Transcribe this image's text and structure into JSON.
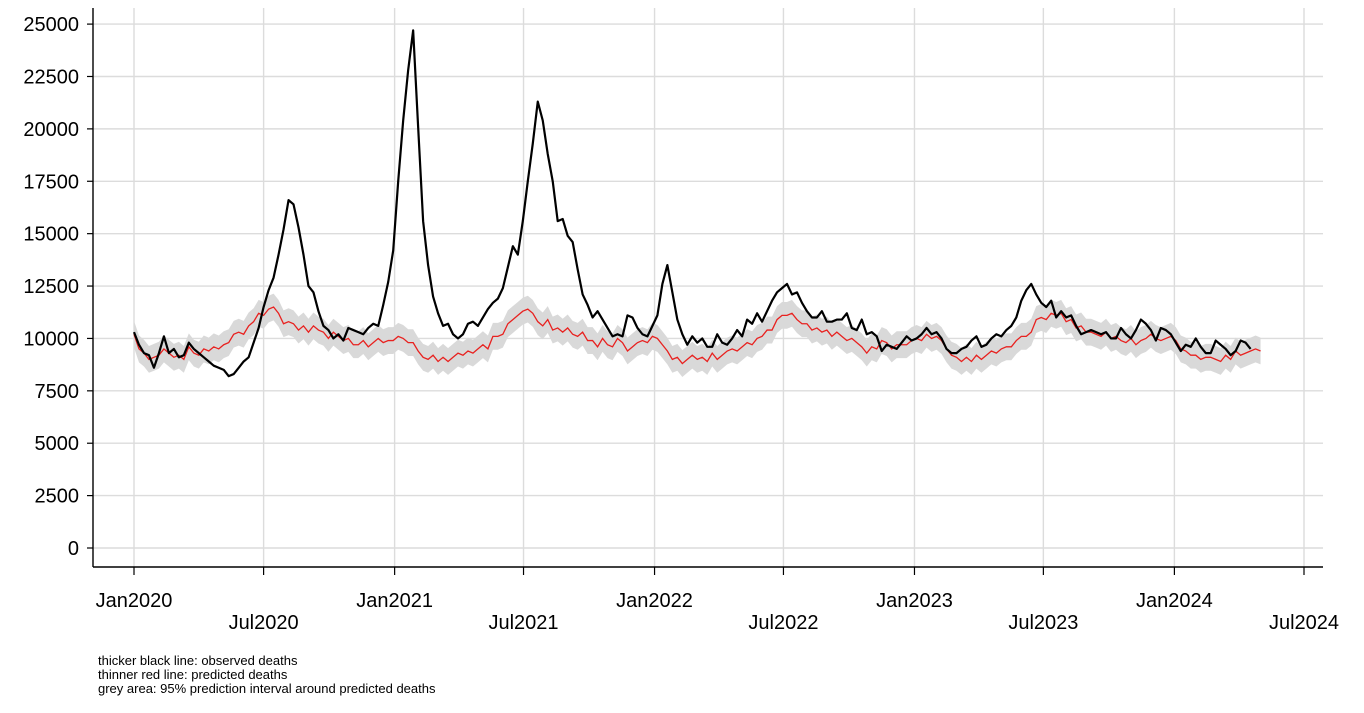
{
  "chart_data": {
    "type": "line",
    "xlabel": "",
    "ylabel": "",
    "x_start": "2020-01-01",
    "x_step_days": 7,
    "ylim": [
      0,
      25000
    ],
    "yticks": [
      0,
      2500,
      5000,
      7500,
      10000,
      12500,
      15000,
      17500,
      20000,
      22500,
      25000
    ],
    "xticks": [
      {
        "label": "Jan2020",
        "date": "2020-01-01",
        "row": "upper"
      },
      {
        "label": "Jul2020",
        "date": "2020-07-01",
        "row": "lower"
      },
      {
        "label": "Jan2021",
        "date": "2021-01-01",
        "row": "upper"
      },
      {
        "label": "Jul2021",
        "date": "2021-07-01",
        "row": "lower"
      },
      {
        "label": "Jan2022",
        "date": "2022-01-01",
        "row": "upper"
      },
      {
        "label": "Jul2022",
        "date": "2022-07-01",
        "row": "lower"
      },
      {
        "label": "Jan2023",
        "date": "2023-01-01",
        "row": "upper"
      },
      {
        "label": "Jul2023",
        "date": "2023-07-01",
        "row": "lower"
      },
      {
        "label": "Jan2024",
        "date": "2024-01-01",
        "row": "upper"
      },
      {
        "label": "Jul2024",
        "date": "2024-07-01",
        "row": "lower"
      }
    ],
    "grid": true,
    "series": [
      {
        "name": "observed deaths",
        "color": "#000000",
        "values": [
          10300,
          9700,
          9300,
          9200,
          8600,
          9300,
          10100,
          9300,
          9500,
          9100,
          9200,
          9800,
          9500,
          9300,
          9100,
          8900,
          8700,
          8600,
          8500,
          8200,
          8300,
          8600,
          8900,
          9100,
          9800,
          10500,
          11500,
          12300,
          12900,
          14000,
          15200,
          16600,
          16400,
          15300,
          14000,
          12500,
          12200,
          11300,
          10600,
          10400,
          10000,
          10200,
          9900,
          10500,
          10400,
          10300,
          10200,
          10500,
          10700,
          10600,
          11600,
          12700,
          14200,
          17500,
          20400,
          22800,
          24700,
          20100,
          15600,
          13500,
          12000,
          11200,
          10600,
          10700,
          10200,
          10000,
          10200,
          10700,
          10800,
          10600,
          11000,
          11400,
          11700,
          11900,
          12400,
          13400,
          14400,
          14000,
          15600,
          17500,
          19300,
          21300,
          20400,
          18800,
          17500,
          15600,
          15700,
          14900,
          14600,
          13300,
          12100,
          11600,
          11000,
          11300,
          10900,
          10500,
          10100,
          10200,
          10100,
          11100,
          11000,
          10500,
          10200,
          10100,
          10600,
          11100,
          12600,
          13500,
          12200,
          10900,
          10200,
          9700,
          10100,
          9800,
          10000,
          9600,
          9600,
          10200,
          9800,
          9700,
          10000,
          10400,
          10100,
          10900,
          10700,
          11200,
          10800,
          11300,
          11800,
          12200,
          12400,
          12600,
          12100,
          12200,
          11700,
          11300,
          11000,
          11000,
          11300,
          10800,
          10800,
          10900,
          10900,
          11200,
          10500,
          10400,
          10900,
          10200,
          10300,
          10100,
          9400,
          9700,
          9600,
          9500,
          9800,
          10100,
          9900,
          10000,
          10200,
          10500,
          10200,
          10300,
          10000,
          9500,
          9300,
          9300,
          9500,
          9600,
          9900,
          10100,
          9600,
          9700,
          10000,
          10200,
          10100,
          10400,
          10600,
          11000,
          11800,
          12300,
          12600,
          12100,
          11700,
          11500,
          11800,
          11000,
          11300,
          11000,
          11100,
          10600,
          10200,
          10300,
          10400,
          10300,
          10200,
          10300,
          10000,
          10000,
          10500,
          10200,
          10000,
          10400,
          10900,
          10700,
          10400,
          9900,
          10500,
          10400,
          10200,
          9800,
          9400,
          9700,
          9600,
          10000,
          9600,
          9300,
          9300,
          9900,
          9700,
          9500,
          9200,
          9400,
          9900,
          9800,
          9500
        ],
        "line_width": 2.2
      },
      {
        "name": "predicted deaths",
        "color": "#e8211f",
        "values": [
          10200,
          9500,
          9300,
          9000,
          9100,
          9200,
          9500,
          9300,
          9100,
          9200,
          9000,
          9600,
          9300,
          9200,
          9500,
          9400,
          9600,
          9500,
          9700,
          9800,
          10200,
          10300,
          10200,
          10600,
          10800,
          11200,
          11100,
          11400,
          11500,
          11200,
          10700,
          10800,
          10700,
          10400,
          10600,
          10300,
          10600,
          10400,
          10300,
          10000,
          10300,
          10100,
          9900,
          10000,
          9700,
          9700,
          9900,
          9600,
          9800,
          10000,
          9800,
          9900,
          9900,
          10100,
          10000,
          9800,
          9800,
          9400,
          9100,
          9000,
          9200,
          8900,
          9100,
          8900,
          9100,
          9300,
          9200,
          9400,
          9300,
          9500,
          9700,
          9500,
          10100,
          10100,
          10200,
          10700,
          10900,
          11100,
          11300,
          11400,
          11200,
          10800,
          10600,
          10900,
          10400,
          10500,
          10300,
          10500,
          10200,
          10100,
          10300,
          9900,
          9900,
          9600,
          10000,
          9700,
          9600,
          10000,
          9800,
          9400,
          9600,
          9800,
          9900,
          9800,
          10100,
          10000,
          9700,
          9400,
          9000,
          9100,
          8800,
          9000,
          9200,
          9000,
          9100,
          8900,
          9300,
          9000,
          9200,
          9400,
          9500,
          9400,
          9600,
          9800,
          9700,
          10000,
          10100,
          10400,
          10400,
          10900,
          11100,
          11100,
          11200,
          10900,
          10700,
          10700,
          10400,
          10500,
          10300,
          10400,
          10100,
          10300,
          10100,
          9900,
          10000,
          9800,
          9600,
          9300,
          9600,
          9500,
          9900,
          9800,
          9500,
          9700,
          9700,
          9700,
          9900,
          10000,
          9900,
          10200,
          10000,
          10100,
          9900,
          9500,
          9200,
          9100,
          8900,
          9100,
          8900,
          9200,
          9000,
          9200,
          9400,
          9300,
          9500,
          9600,
          9600,
          9900,
          10100,
          10100,
          10300,
          10900,
          11000,
          10900,
          11200,
          11100,
          11200,
          10800,
          10900,
          10500,
          10600,
          10300,
          10300,
          10200,
          10100,
          10300,
          10000,
          10100,
          9900,
          9800,
          10000,
          9700,
          9900,
          10000,
          10200,
          10000,
          9900,
          10000,
          10100,
          9900,
          9500,
          9400,
          9200,
          9200,
          9000,
          9100,
          9100,
          9000,
          8900,
          9200,
          9000,
          9400,
          9200,
          9300,
          9400,
          9500,
          9400
        ],
        "line_width": 1.3
      }
    ],
    "band": {
      "name": "95% prediction interval around predicted deaths",
      "color": "#d9d9d9",
      "half_width": 640
    }
  },
  "notes": [
    "thicker black line: observed deaths",
    "thinner red line: predicted deaths",
    "grey area: 95% prediction interval around predicted deaths"
  ]
}
